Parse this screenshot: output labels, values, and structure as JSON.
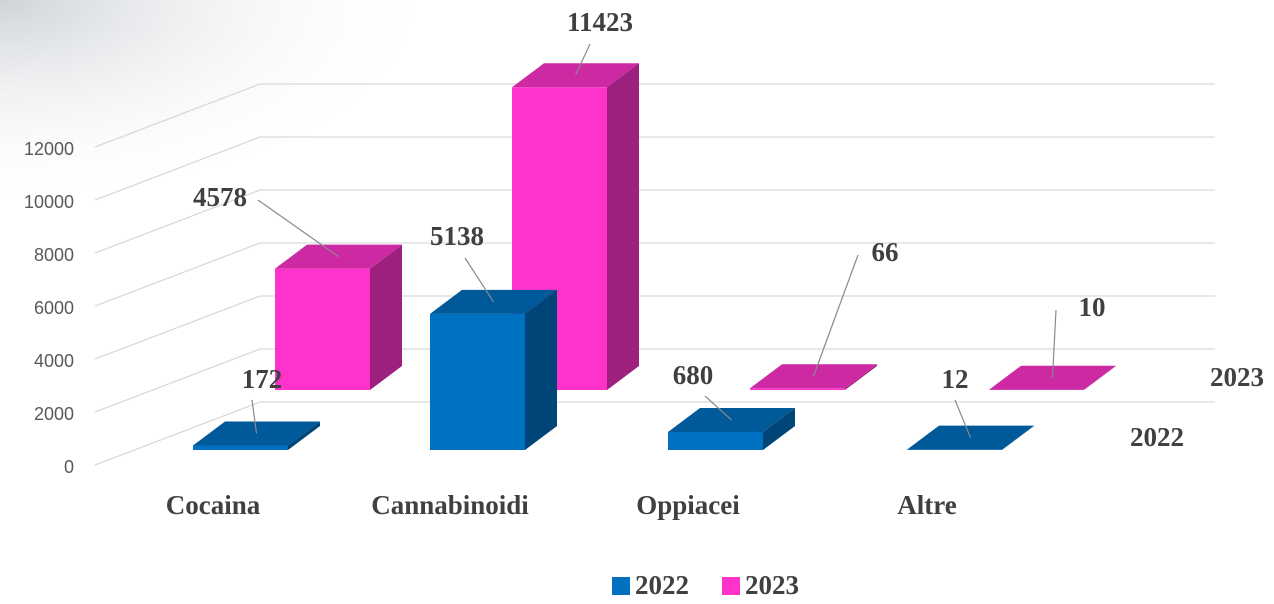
{
  "chart_data": {
    "type": "bar3d",
    "categories": [
      "Cocaina",
      "Cannabinoidi",
      "Oppiacei",
      "Altre"
    ],
    "series": [
      {
        "name": "2022",
        "color": "#0070c0",
        "values": [
          172,
          5138,
          680,
          12
        ]
      },
      {
        "name": "2023",
        "color": "#ff33cc",
        "values": [
          4578,
          11423,
          66,
          10
        ]
      }
    ],
    "ylim": [
      0,
      14000
    ],
    "yticks": [
      0,
      2000,
      4000,
      6000,
      8000,
      10000,
      12000
    ],
    "grid": true,
    "legend": "bottom"
  }
}
